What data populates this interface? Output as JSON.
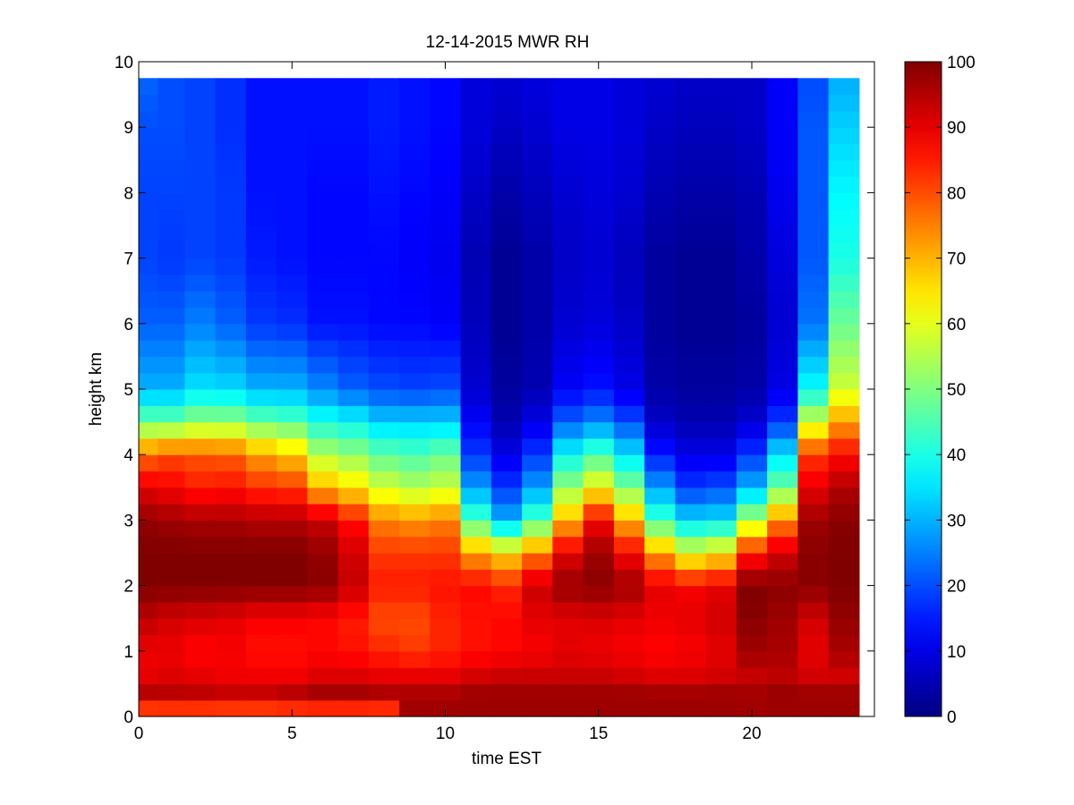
{
  "chart_data": {
    "type": "heatmap",
    "title": "12-14-2015 MWR RH",
    "xlabel": "time EST",
    "ylabel": "height km",
    "xlim": [
      0,
      24
    ],
    "ylim": [
      0,
      10
    ],
    "x_ticks": [
      0,
      5,
      10,
      15,
      20
    ],
    "y_ticks": [
      0,
      1,
      2,
      3,
      4,
      5,
      6,
      7,
      8,
      9,
      10
    ],
    "x_tick_labels": [
      "0",
      "5",
      "10",
      "15",
      "20"
    ],
    "y_tick_labels": [
      "0",
      "1",
      "2",
      "3",
      "4",
      "5",
      "6",
      "7",
      "8",
      "9",
      "10"
    ],
    "colormap": "jet",
    "colorbar": {
      "clim": [
        0,
        100
      ],
      "ticks": [
        0,
        10,
        20,
        30,
        40,
        50,
        60,
        70,
        80,
        90,
        100
      ],
      "tick_labels": [
        "0",
        "10",
        "20",
        "30",
        "40",
        "50",
        "60",
        "70",
        "80",
        "90",
        "100"
      ]
    },
    "grid": false,
    "time_step_h": 1,
    "time_start_h": 0,
    "time_end_h": 23.5,
    "height_top_km": 9.75,
    "heights_km": [
      0.05,
      0.25,
      0.6,
      1.0,
      1.5,
      2.0,
      2.5,
      3.0,
      3.5,
      4.0,
      4.5,
      5.0,
      6.0,
      7.0,
      8.0,
      9.0,
      9.6
    ],
    "profiles": [
      {
        "time": 0.25,
        "rh": [
          74,
          97,
          90,
          89,
          94,
          100,
          100,
          98,
          90,
          77,
          48,
          30,
          22,
          19,
          19,
          20,
          22
        ]
      },
      {
        "time": 1.0,
        "rh": [
          75,
          96,
          91,
          89,
          92,
          100,
          100,
          97,
          88,
          80,
          48,
          30,
          22,
          18,
          19,
          20,
          20
        ]
      },
      {
        "time": 2.0,
        "rh": [
          75,
          96,
          90,
          87,
          91,
          100,
          100,
          96,
          85,
          79,
          52,
          35,
          25,
          19,
          19,
          19,
          19
        ]
      },
      {
        "time": 3.0,
        "rh": [
          75,
          95,
          89,
          88,
          90,
          100,
          100,
          96,
          86,
          78,
          52,
          34,
          22,
          18,
          18,
          17,
          17
        ]
      },
      {
        "time": 4.0,
        "rh": [
          75,
          95,
          89,
          86,
          88,
          100,
          100,
          95,
          83,
          72,
          48,
          30,
          18,
          15,
          14,
          14,
          14
        ]
      },
      {
        "time": 5.0,
        "rh": [
          75,
          97,
          89,
          86,
          88,
          100,
          100,
          95,
          82,
          68,
          46,
          30,
          17,
          14,
          14,
          14,
          14
        ]
      },
      {
        "time": 6.0,
        "rh": [
          75,
          99,
          91,
          87,
          87,
          99,
          98,
          93,
          70,
          55,
          40,
          26,
          14,
          13,
          13,
          14,
          14
        ]
      },
      {
        "time": 7.0,
        "rh": [
          75,
          99,
          91,
          86,
          85,
          93,
          92,
          86,
          65,
          52,
          38,
          22,
          14,
          13,
          13,
          14,
          14
        ]
      },
      {
        "time": 8.0,
        "rh": [
          75,
          98,
          90,
          84,
          80,
          85,
          82,
          75,
          58,
          47,
          33,
          20,
          13,
          13,
          14,
          15,
          15
        ]
      },
      {
        "time": 9.0,
        "rh": [
          96,
          98,
          90,
          82,
          80,
          85,
          82,
          73,
          55,
          45,
          33,
          19,
          13,
          12,
          13,
          14,
          14
        ]
      },
      {
        "time": 10.0,
        "rh": [
          96,
          98,
          90,
          84,
          84,
          86,
          82,
          75,
          57,
          48,
          33,
          20,
          12,
          11,
          12,
          13,
          13
        ]
      },
      {
        "time": 11.0,
        "rh": [
          96,
          99,
          92,
          86,
          86,
          87,
          72,
          45,
          28,
          18,
          12,
          8,
          6,
          5,
          7,
          9,
          9
        ]
      },
      {
        "time": 12.0,
        "rh": [
          96,
          99,
          93,
          87,
          87,
          84,
          66,
          30,
          18,
          10,
          5,
          3,
          2,
          2,
          4,
          7,
          8
        ]
      },
      {
        "time": 13.0,
        "rh": [
          96,
          99,
          93,
          88,
          90,
          93,
          75,
          45,
          28,
          18,
          10,
          5,
          4,
          4,
          6,
          8,
          9
        ]
      },
      {
        "time": 14.0,
        "rh": [
          96,
          99,
          93,
          90,
          90,
          98,
          90,
          70,
          52,
          38,
          22,
          12,
          8,
          7,
          8,
          10,
          10
        ]
      },
      {
        "time": 15.0,
        "rh": [
          96,
          99,
          93,
          89,
          91,
          99,
          97,
          88,
          62,
          45,
          26,
          14,
          9,
          8,
          9,
          10,
          10
        ]
      },
      {
        "time": 16.0,
        "rh": [
          96,
          99,
          92,
          88,
          90,
          97,
          88,
          70,
          50,
          35,
          20,
          10,
          7,
          6,
          8,
          9,
          9
        ]
      },
      {
        "time": 17.0,
        "rh": [
          96,
          99,
          91,
          87,
          89,
          90,
          72,
          44,
          28,
          15,
          7,
          4,
          3,
          3,
          5,
          7,
          8
        ]
      },
      {
        "time": 18.0,
        "rh": [
          96,
          99,
          91,
          88,
          90,
          88,
          60,
          34,
          18,
          10,
          5,
          3,
          2,
          2,
          4,
          6,
          7
        ]
      },
      {
        "time": 19.0,
        "rh": [
          96,
          99,
          92,
          90,
          92,
          90,
          64,
          35,
          20,
          10,
          5,
          3,
          2,
          2,
          4,
          6,
          7
        ]
      },
      {
        "time": 20.0,
        "rh": [
          96,
          98,
          93,
          97,
          99,
          100,
          85,
          55,
          30,
          18,
          8,
          4,
          3,
          4,
          5,
          7,
          7
        ]
      },
      {
        "time": 21.0,
        "rh": [
          96,
          99,
          94,
          96,
          97,
          99,
          92,
          74,
          48,
          35,
          18,
          10,
          8,
          9,
          11,
          12,
          12
        ]
      },
      {
        "time": 22.0,
        "rh": [
          96,
          99,
          92,
          90,
          92,
          99,
          99,
          97,
          90,
          82,
          58,
          38,
          24,
          21,
          21,
          21,
          20
        ]
      },
      {
        "time": 23.0,
        "rh": [
          96,
          99,
          92,
          96,
          98,
          100,
          100,
          99,
          95,
          87,
          72,
          58,
          48,
          40,
          37,
          33,
          30
        ]
      }
    ]
  }
}
